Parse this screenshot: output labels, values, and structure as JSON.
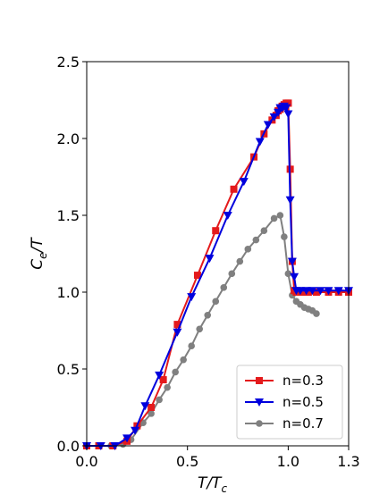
{
  "chart_data": {
    "type": "line",
    "xlabel_main": "T/T",
    "xlabel_sub": "c",
    "ylabel_main": "C",
    "ylabel_sub": "e",
    "ylabel_tail": "/T",
    "xlim": [
      0.0,
      1.3
    ],
    "ylim": [
      0.0,
      2.5
    ],
    "xticks": [
      "0.0",
      "0.5",
      "1.0",
      "1.3"
    ],
    "xtick_values": [
      0.0,
      0.5,
      1.0,
      1.3
    ],
    "yticks": [
      "0.0",
      "0.5",
      "1.0",
      "1.5",
      "2.0",
      "2.5"
    ],
    "ytick_values": [
      0.0,
      0.5,
      1.0,
      1.5,
      2.0,
      2.5
    ],
    "grid": false,
    "legend_position": "lower-right",
    "series": [
      {
        "name": "n=0.3",
        "color": "#e41a1c",
        "marker": "square",
        "x": [
          0.0,
          0.06,
          0.13,
          0.2,
          0.25,
          0.32,
          0.38,
          0.45,
          0.55,
          0.64,
          0.73,
          0.83,
          0.88,
          0.92,
          0.94,
          0.95,
          0.96,
          0.97,
          0.98,
          0.99,
          1.0,
          1.0,
          1.01,
          1.02,
          1.03,
          1.04,
          1.07,
          1.1,
          1.14,
          1.2,
          1.25,
          1.3
        ],
        "y": [
          0.0,
          0.0,
          0.0,
          0.03,
          0.13,
          0.25,
          0.43,
          0.79,
          1.11,
          1.4,
          1.67,
          1.88,
          2.03,
          2.12,
          2.15,
          2.18,
          2.19,
          2.21,
          2.22,
          2.23,
          2.23,
          2.23,
          1.8,
          1.2,
          1.01,
          1.0,
          1.0,
          1.0,
          1.0,
          1.0,
          1.0,
          1.0
        ]
      },
      {
        "name": "n=0.5",
        "color": "#0000dd",
        "marker": "triangle-down",
        "x": [
          0.0,
          0.07,
          0.14,
          0.2,
          0.24,
          0.29,
          0.36,
          0.45,
          0.52,
          0.61,
          0.7,
          0.78,
          0.86,
          0.9,
          0.93,
          0.95,
          0.96,
          0.97,
          0.98,
          0.99,
          1.0,
          1.01,
          1.02,
          1.03,
          1.04,
          1.06,
          1.09,
          1.12,
          1.16,
          1.2,
          1.25,
          1.3
        ],
        "y": [
          0.0,
          0.0,
          0.0,
          0.05,
          0.1,
          0.26,
          0.46,
          0.74,
          0.97,
          1.22,
          1.5,
          1.72,
          1.98,
          2.09,
          2.14,
          2.17,
          2.2,
          2.2,
          2.21,
          2.2,
          2.16,
          1.6,
          1.2,
          1.1,
          1.01,
          1.01,
          1.01,
          1.01,
          1.01,
          1.01,
          1.01,
          1.01
        ]
      },
      {
        "name": "n=0.7",
        "color": "#808080",
        "marker": "circle",
        "x": [
          0.0,
          0.06,
          0.12,
          0.18,
          0.22,
          0.28,
          0.32,
          0.36,
          0.4,
          0.44,
          0.48,
          0.52,
          0.56,
          0.6,
          0.64,
          0.68,
          0.72,
          0.76,
          0.8,
          0.84,
          0.88,
          0.93,
          0.96,
          0.98,
          1.0,
          1.02,
          1.04,
          1.06,
          1.08,
          1.1,
          1.12,
          1.14
        ],
        "y": [
          0.0,
          0.0,
          0.0,
          0.01,
          0.04,
          0.15,
          0.21,
          0.3,
          0.38,
          0.48,
          0.56,
          0.65,
          0.76,
          0.85,
          0.94,
          1.03,
          1.12,
          1.2,
          1.28,
          1.34,
          1.4,
          1.48,
          1.5,
          1.36,
          1.12,
          0.98,
          0.94,
          0.92,
          0.9,
          0.89,
          0.88,
          0.86
        ]
      }
    ]
  }
}
